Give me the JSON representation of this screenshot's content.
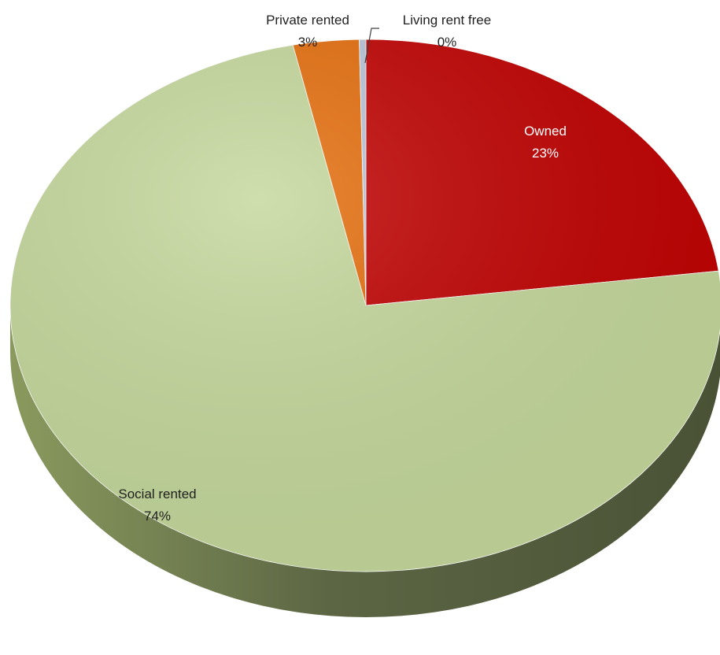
{
  "chart_data": {
    "type": "pie",
    "title": "",
    "categories": [
      "Owned",
      "Social rented",
      "Private rented",
      "Living rent free"
    ],
    "values": [
      23,
      74,
      3,
      0.3
    ],
    "labels": [
      "23%",
      "74%",
      "3%",
      "0%"
    ],
    "colors": [
      "#c00000",
      "#c4d79b",
      "#e46c0a",
      "#b8c4d9"
    ],
    "label_colors": [
      "#ffffff",
      "#1f1f1f",
      "#1f1f1f",
      "#1f1f1f"
    ],
    "style": "3d",
    "legend": "none"
  }
}
